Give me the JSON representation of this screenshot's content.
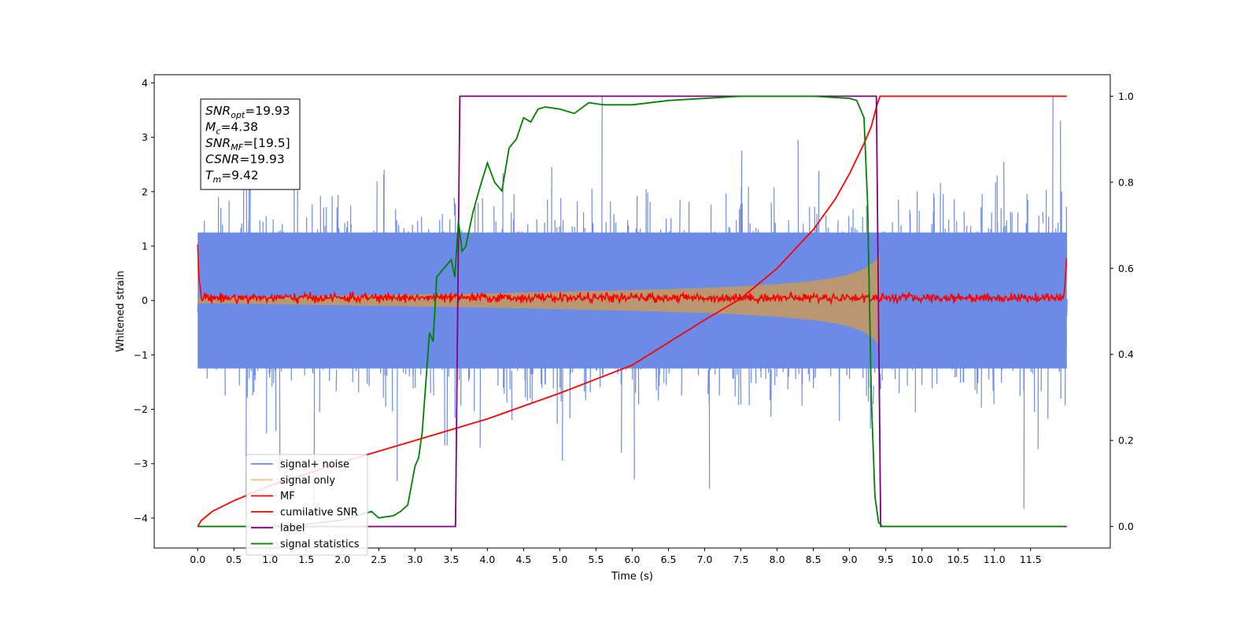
{
  "chart_data": {
    "type": "line",
    "title": "",
    "xlabel": "Time (s)",
    "ylabel": "Whitened strain",
    "xlim": [
      -0.6,
      12.6
    ],
    "ylim": [
      -4.55,
      4.15
    ],
    "y2lim": [
      -0.05,
      1.05
    ],
    "xticks": [
      0.0,
      0.5,
      1.0,
      1.5,
      2.0,
      2.5,
      3.0,
      3.5,
      4.0,
      4.5,
      5.0,
      5.5,
      6.0,
      6.5,
      7.0,
      7.5,
      8.0,
      8.5,
      9.0,
      9.5,
      10.0,
      10.5,
      11.0,
      11.5
    ],
    "xtick_labels": [
      "0.0",
      "0.5",
      "1.0",
      "1.5",
      "2.0",
      "2.5",
      "3.0",
      "3.5",
      "4.0",
      "4.5",
      "5.0",
      "5.5",
      "6.0",
      "6.5",
      "7.0",
      "7.5",
      "8.0",
      "8.5",
      "9.0",
      "9.5",
      "10.0",
      "10.5",
      "11.0",
      "11.5"
    ],
    "yticks": [
      -4,
      -3,
      -2,
      -1,
      0,
      1,
      2,
      3,
      4
    ],
    "ytick_labels": [
      "−4",
      "−3",
      "−2",
      "−1",
      "0",
      "1",
      "2",
      "3",
      "4"
    ],
    "y2ticks": [
      0.0,
      0.2,
      0.4,
      0.6,
      0.8,
      1.0
    ],
    "y2tick_labels": [
      "0.0",
      "0.2",
      "0.4",
      "0.6",
      "0.8",
      "1.0"
    ],
    "grid": false,
    "legend_position": "lower-left",
    "series": [
      {
        "name": "signal+ noise",
        "axis": "left",
        "color": "#6b8be6",
        "kind": "noise-band",
        "x_range": [
          0.0,
          12.0
        ],
        "center": 0.0,
        "core_envelope": 1.25,
        "max_spike": 3.75
      },
      {
        "name": "signal only",
        "axis": "left",
        "color": "#b99770",
        "kind": "chirp-envelope",
        "x": [
          0.0,
          1.0,
          2.0,
          3.0,
          4.0,
          5.0,
          6.0,
          7.0,
          7.5,
          8.0,
          8.5,
          8.8,
          9.0,
          9.2,
          9.35,
          9.42
        ],
        "amplitude": [
          0.05,
          0.07,
          0.09,
          0.11,
          0.13,
          0.16,
          0.19,
          0.23,
          0.26,
          0.3,
          0.36,
          0.42,
          0.48,
          0.58,
          0.72,
          0.88
        ]
      },
      {
        "name": "MF",
        "axis": "left",
        "color": "#ff0000",
        "kind": "noisy-line",
        "x": [
          0.0,
          0.02,
          0.05,
          11.95,
          11.98,
          12.0
        ],
        "y": [
          1.0,
          0.4,
          0.05,
          0.05,
          0.3,
          0.95
        ],
        "noise": 0.04
      },
      {
        "name": "cumilative SNR",
        "axis": "right",
        "color": "#ff0000",
        "x": [
          0.0,
          0.05,
          0.2,
          0.5,
          1.0,
          2.0,
          3.0,
          4.0,
          5.0,
          6.0,
          7.0,
          7.5,
          8.0,
          8.5,
          8.8,
          9.0,
          9.2,
          9.3,
          9.38,
          9.42,
          12.0
        ],
        "y": [
          0.0,
          0.014,
          0.035,
          0.06,
          0.095,
          0.15,
          0.2,
          0.25,
          0.31,
          0.375,
          0.48,
          0.53,
          0.6,
          0.69,
          0.76,
          0.82,
          0.89,
          0.93,
          0.98,
          1.0,
          1.0
        ]
      },
      {
        "name": "label",
        "axis": "right",
        "color": "#800080",
        "x": [
          0.0,
          3.56,
          3.62,
          9.37,
          9.43,
          12.0
        ],
        "y": [
          0.0,
          0.0,
          1.0,
          1.0,
          0.0,
          0.0
        ]
      },
      {
        "name": "signal statistics",
        "axis": "right",
        "color": "#008000",
        "x": [
          0.0,
          0.5,
          1.0,
          1.5,
          2.0,
          2.2,
          2.4,
          2.5,
          2.7,
          2.8,
          2.9,
          3.0,
          3.05,
          3.1,
          3.2,
          3.25,
          3.3,
          3.4,
          3.5,
          3.55,
          3.6,
          3.65,
          3.7,
          3.8,
          3.9,
          4.0,
          4.1,
          4.2,
          4.3,
          4.4,
          4.5,
          4.6,
          4.7,
          4.8,
          5.0,
          5.2,
          5.4,
          5.6,
          6.0,
          6.5,
          7.0,
          7.5,
          8.0,
          8.5,
          9.0,
          9.1,
          9.2,
          9.25,
          9.3,
          9.35,
          9.4,
          9.45,
          9.5,
          10.0,
          11.0,
          11.95
        ],
        "y": [
          0.0,
          0.0,
          0.0,
          0.005,
          0.015,
          0.025,
          0.035,
          0.02,
          0.025,
          0.035,
          0.05,
          0.14,
          0.16,
          0.22,
          0.45,
          0.43,
          0.58,
          0.6,
          0.62,
          0.58,
          0.71,
          0.64,
          0.65,
          0.73,
          0.79,
          0.845,
          0.8,
          0.78,
          0.88,
          0.9,
          0.95,
          0.94,
          0.97,
          0.975,
          0.97,
          0.96,
          0.985,
          0.98,
          0.98,
          0.99,
          0.995,
          1.0,
          1.0,
          1.0,
          0.995,
          0.99,
          0.95,
          0.75,
          0.3,
          0.07,
          0.01,
          0.0,
          0.0,
          0.0,
          0.0,
          0.0
        ]
      }
    ],
    "annotation_box": {
      "position": "top-left",
      "lines": [
        {
          "main": "SNR",
          "sub": "opt",
          "value": "=19.93"
        },
        {
          "main": "M",
          "sub": "c",
          "value": "=4.38"
        },
        {
          "main": "SNR",
          "sub": "MF",
          "value": "=[19.5]"
        },
        {
          "main": "CSNR",
          "sub": "",
          "value": "=19.93"
        },
        {
          "main": "T",
          "sub": "m",
          "value": "=9.42"
        }
      ]
    },
    "legend": [
      {
        "label": "signal+ noise",
        "color": "#6b8be6"
      },
      {
        "label": "signal only",
        "color": "#ffbf80"
      },
      {
        "label": "MF",
        "color": "#ff0000"
      },
      {
        "label": "cumilative SNR",
        "color": "#ff0000"
      },
      {
        "label": "label",
        "color": "#800080"
      },
      {
        "label": "signal statistics",
        "color": "#008000"
      }
    ]
  }
}
